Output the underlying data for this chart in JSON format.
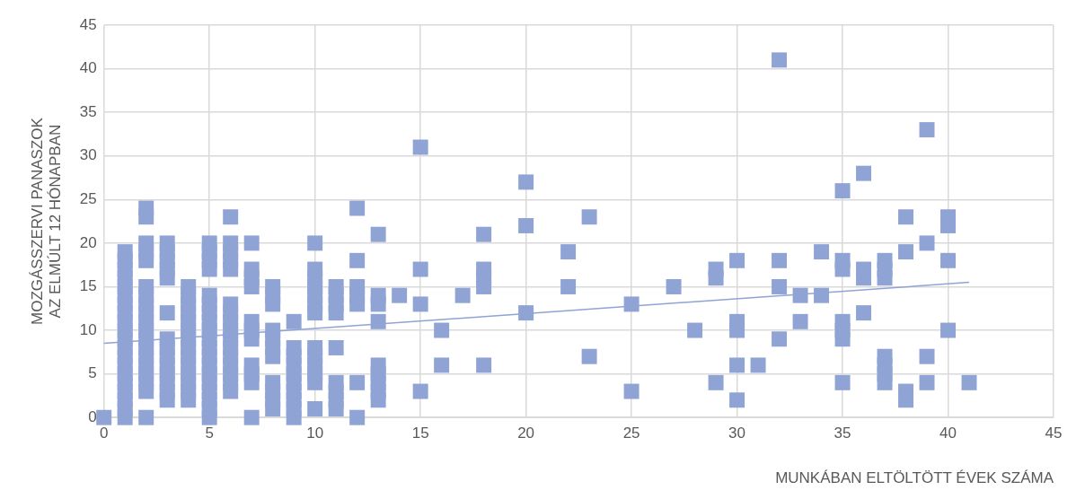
{
  "chart_data": {
    "type": "scatter",
    "xlabel": "MUNKÁBAN ELTÖLTÖTT ÉVEK SZÁMA",
    "ylabel": "MOZGÁSSZERVI PANASZOK AZ ELMÚLT 12 HÓNAPBAN",
    "xlim": [
      0,
      45
    ],
    "xticks": [
      0,
      5,
      10,
      15,
      20,
      25,
      30,
      35,
      40,
      45
    ],
    "ylim": [
      0,
      45
    ],
    "yticks": [
      0,
      5,
      10,
      15,
      20,
      25,
      30,
      35,
      40,
      45
    ],
    "grid": true,
    "marker": "square",
    "series": [
      {
        "color": "#8fa3d4",
        "x": [
          0,
          1,
          1,
          1,
          1,
          1,
          1,
          1,
          1,
          1,
          1,
          1,
          1,
          1,
          1,
          1,
          1,
          1,
          1,
          1,
          1,
          2,
          2,
          2,
          2,
          2,
          2,
          2,
          2,
          2,
          2,
          2,
          2,
          2,
          2,
          2,
          2,
          2,
          2,
          2,
          3,
          3,
          3,
          3,
          3,
          3,
          3,
          3,
          3,
          3,
          3,
          3,
          3,
          3,
          4,
          4,
          4,
          4,
          4,
          4,
          4,
          4,
          4,
          4,
          4,
          4,
          4,
          4,
          5,
          5,
          5,
          5,
          5,
          5,
          5,
          5,
          5,
          5,
          5,
          5,
          5,
          5,
          5,
          5,
          5,
          5,
          5,
          6,
          6,
          6,
          6,
          6,
          6,
          6,
          6,
          6,
          6,
          6,
          6,
          6,
          6,
          6,
          6,
          7,
          7,
          7,
          7,
          7,
          7,
          7,
          7,
          7,
          7,
          7,
          8,
          8,
          8,
          8,
          8,
          8,
          8,
          8,
          8,
          8,
          8,
          9,
          9,
          9,
          9,
          9,
          9,
          9,
          9,
          9,
          9,
          10,
          10,
          10,
          10,
          10,
          10,
          10,
          10,
          10,
          10,
          10,
          10,
          10,
          11,
          11,
          11,
          11,
          11,
          11,
          11,
          11,
          11,
          12,
          12,
          12,
          12,
          12,
          12,
          12,
          13,
          13,
          13,
          13,
          13,
          13,
          13,
          13,
          13,
          14,
          15,
          15,
          15,
          15,
          16,
          16,
          17,
          18,
          18,
          18,
          18,
          18,
          20,
          20,
          20,
          22,
          22,
          23,
          23,
          25,
          25,
          27,
          28,
          29,
          29,
          29,
          30,
          30,
          30,
          30,
          30,
          31,
          32,
          32,
          32,
          32,
          33,
          33,
          34,
          34,
          35,
          35,
          35,
          35,
          35,
          35,
          35,
          36,
          36,
          36,
          36,
          37,
          37,
          37,
          37,
          37,
          37,
          37,
          38,
          38,
          38,
          38,
          39,
          39,
          39,
          39,
          40,
          40,
          40,
          40,
          41
        ],
        "values": [
          0,
          0,
          1,
          2,
          3,
          4,
          5,
          6,
          7,
          8,
          9,
          10,
          11,
          12,
          13,
          14,
          15,
          16,
          17,
          18,
          19,
          0,
          3,
          4,
          5,
          6,
          7,
          8,
          9,
          10,
          11,
          12,
          13,
          14,
          15,
          18,
          19,
          20,
          23,
          24,
          2,
          3,
          4,
          5,
          6,
          7,
          8,
          9,
          12,
          16,
          17,
          18,
          19,
          20,
          2,
          3,
          4,
          5,
          6,
          7,
          8,
          9,
          10,
          11,
          12,
          13,
          14,
          15,
          0,
          1,
          2,
          3,
          4,
          5,
          6,
          7,
          8,
          9,
          10,
          11,
          12,
          13,
          14,
          17,
          18,
          19,
          20,
          3,
          4,
          5,
          6,
          7,
          8,
          9,
          10,
          11,
          12,
          13,
          17,
          18,
          19,
          20,
          23,
          0,
          4,
          5,
          6,
          9,
          10,
          11,
          15,
          16,
          17,
          20,
          1,
          2,
          3,
          4,
          7,
          8,
          9,
          10,
          13,
          14,
          15,
          0,
          1,
          2,
          3,
          4,
          5,
          6,
          7,
          8,
          11,
          1,
          4,
          5,
          6,
          7,
          8,
          12,
          13,
          14,
          15,
          16,
          17,
          20,
          1,
          2,
          3,
          4,
          8,
          12,
          13,
          14,
          15,
          0,
          4,
          13,
          14,
          15,
          18,
          24,
          2,
          3,
          4,
          5,
          6,
          11,
          13,
          14,
          21,
          14,
          3,
          13,
          17,
          31,
          6,
          10,
          14,
          6,
          15,
          16,
          17,
          21,
          12,
          22,
          27,
          15,
          19,
          7,
          23,
          3,
          13,
          15,
          10,
          4,
          16,
          17,
          2,
          6,
          10,
          11,
          18,
          6,
          9,
          15,
          18,
          41,
          11,
          14,
          14,
          19,
          4,
          9,
          10,
          11,
          17,
          18,
          26,
          12,
          16,
          17,
          28,
          4,
          5,
          6,
          7,
          16,
          17,
          18,
          2,
          3,
          19,
          23,
          4,
          7,
          20,
          33,
          10,
          18,
          22,
          23,
          4
        ]
      },
      {
        "type": "line",
        "color": "#8fa3d4",
        "marker": "none",
        "x": [
          0,
          41
        ],
        "values": [
          8.5,
          15.5
        ]
      }
    ]
  }
}
